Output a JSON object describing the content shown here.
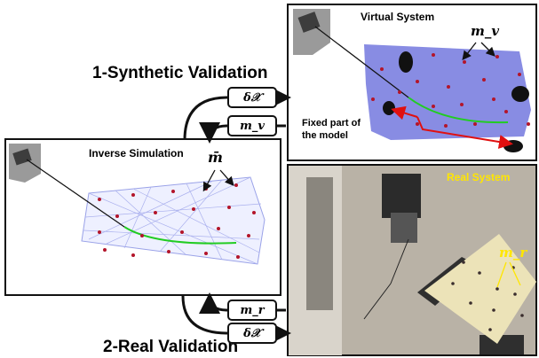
{
  "headings": {
    "synthetic": "1-Synthetic Validation",
    "real": "2-Real Validation"
  },
  "panels": {
    "virtual": {
      "title": "Virtual System",
      "marker_label": "m_v"
    },
    "inverse": {
      "title": "Inverse Simulation",
      "marker_label": "m̄"
    },
    "real": {
      "title": "Real System",
      "marker_label": "m_r"
    }
  },
  "boxes": {
    "synthetic_dx": "δ𝒳",
    "synthetic_mv": "m_v",
    "real_mr": "m_r",
    "real_dx": "δ𝒳"
  },
  "annotation": {
    "fixed_line1": "Fixed part of",
    "fixed_line2": "the model"
  },
  "colors": {
    "virtual_body": "#7b7fe0",
    "marker_red": "#b3152a",
    "catheter_green": "#22cc22",
    "real_title": "#ffe600",
    "fixed_arrow": "#e01010"
  }
}
